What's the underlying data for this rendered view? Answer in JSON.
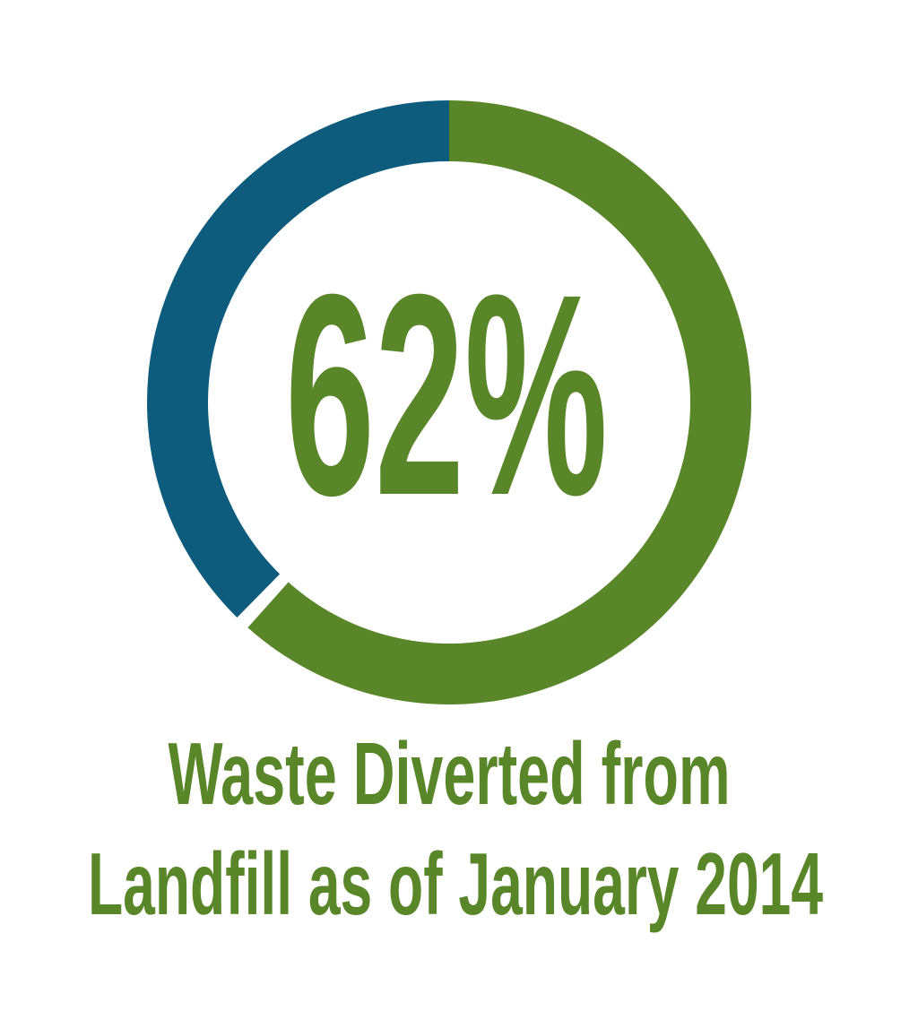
{
  "page": {
    "background": "#ffffff"
  },
  "chart_data": {
    "type": "pie",
    "variant": "donut",
    "title": "Waste Diverted from Landfill as of January 2014",
    "center_label": "62%",
    "slices": [
      {
        "name": "waste-diverted",
        "value": 62,
        "color": "#588628"
      },
      {
        "name": "waste-remaining",
        "value": 38,
        "color": "#0d5c7e"
      }
    ],
    "start_angle": 0,
    "direction": "clockwise",
    "legend_position": "none",
    "grid": "off",
    "caption_lines": [
      "Waste Diverted from",
      "Landfill as of January 2014"
    ],
    "text_color": "#588628"
  }
}
